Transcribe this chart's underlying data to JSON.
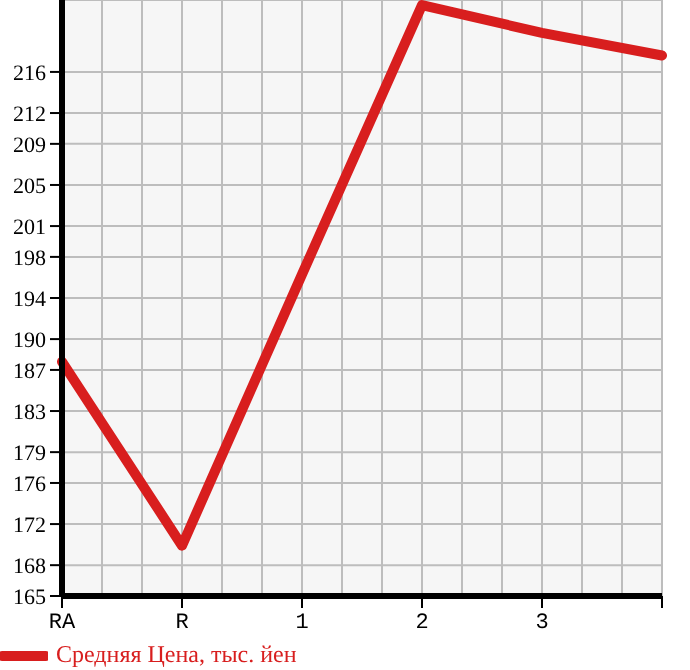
{
  "chart_data": {
    "type": "line",
    "categories": [
      "RA",
      "R",
      "1",
      "2",
      "3",
      null
    ],
    "series": [
      {
        "name": "Средняя Цена, тыс. йен",
        "color": "#d81e1e",
        "values": [
          187.8,
          169.9,
          196.3,
          222.5,
          219.8,
          217.6
        ]
      }
    ],
    "ylim": [
      165,
      223
    ],
    "yticks": [
      165,
      168,
      172,
      176,
      179,
      183,
      187,
      190,
      194,
      198,
      201,
      205,
      209,
      212,
      216
    ],
    "grid": true,
    "legend": "bottom left",
    "marker": "none",
    "line_style": "solid"
  }
}
